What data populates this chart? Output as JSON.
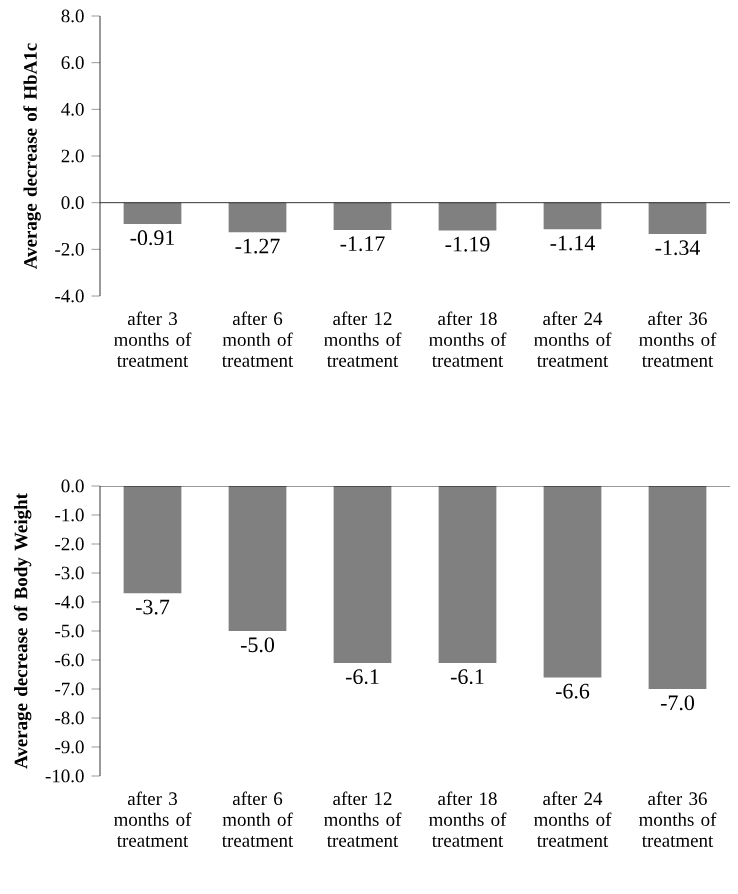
{
  "chart_data": [
    {
      "type": "bar",
      "ylabel": "Average decrease of HbA1c",
      "categories": [
        "after 3 months of treatment",
        "after 6 month of treatment",
        "after 12 months of treatment",
        "after 18 months of treatment",
        "after 24 months of treatment",
        "after 36 months of treatment"
      ],
      "values": [
        -0.91,
        -1.27,
        -1.17,
        -1.19,
        -1.14,
        -1.34
      ],
      "value_labels": [
        "-0.91",
        "-1.27",
        "-1.17",
        "-1.19",
        "-1.14",
        "-1.34"
      ],
      "color": "#808080",
      "ylim": [
        -4,
        8
      ],
      "yticks": [
        {
          "value": -4,
          "label": "-4.0"
        },
        {
          "value": -2,
          "label": "-2.0"
        },
        {
          "value": 0,
          "label": "0.0"
        },
        {
          "value": 2,
          "label": "2.0"
        },
        {
          "value": 4,
          "label": "4.0"
        },
        {
          "value": 6,
          "label": "6.0"
        },
        {
          "value": 8,
          "label": "8.0"
        }
      ]
    },
    {
      "type": "bar",
      "ylabel": "Average decrease of Body Weight",
      "categories": [
        "after 3 months of treatment",
        "after 6 month of treatment",
        "after 12 months of treatment",
        "after 18 months of treatment",
        "after 24 months of treatment",
        "after 36 months of treatment"
      ],
      "values": [
        -3.7,
        -5.0,
        -6.1,
        -6.1,
        -6.6,
        -7.0
      ],
      "value_labels": [
        "-3.7",
        "-5.0",
        "-6.1",
        "-6.1",
        "-6.6",
        "-7.0"
      ],
      "color": "#808080",
      "ylim": [
        -10,
        0
      ],
      "yticks": [
        {
          "value": -10,
          "label": "-10.0"
        },
        {
          "value": -9,
          "label": "-9.0"
        },
        {
          "value": -8,
          "label": "-8.0"
        },
        {
          "value": -7,
          "label": "-7.0"
        },
        {
          "value": -6,
          "label": "-6.0"
        },
        {
          "value": -5,
          "label": "-5.0"
        },
        {
          "value": -4,
          "label": "-4.0"
        },
        {
          "value": -3,
          "label": "-3.0"
        },
        {
          "value": -2,
          "label": "-2.0"
        },
        {
          "value": -1,
          "label": "-1.0"
        },
        {
          "value": 0,
          "label": "0.0"
        }
      ]
    }
  ]
}
